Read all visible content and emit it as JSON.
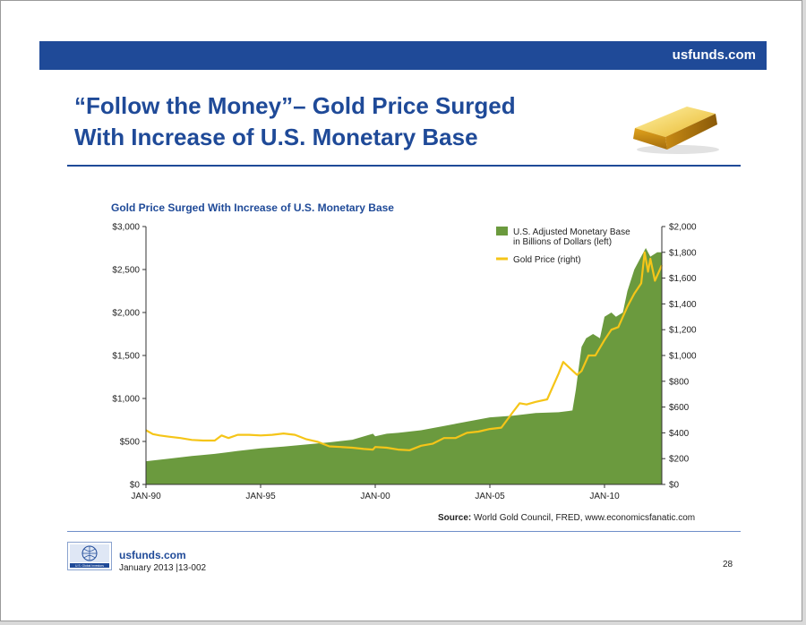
{
  "header": {
    "site": "usfunds.com"
  },
  "slide_title": "“Follow the Money”– Gold Price Surged\nWith Increase of U.S. Monetary Base",
  "footer": {
    "site": "usfunds.com",
    "date_code": "January 2013 |13-002",
    "page_number": "28",
    "logo_caption": "U.S. Global Investors"
  },
  "source_note": {
    "label": "Source:",
    "text": " World Gold Council, FRED, www.economicsfanatic.com"
  },
  "colors": {
    "brand_blue": "#1f4a98",
    "monetary_base": "#6b9a3e",
    "gold_price": "#f5c518"
  },
  "chart_data": {
    "type": "area",
    "title": "Gold Price Surged With Increase of U.S. Monetary Base",
    "x_range": [
      1990.0,
      2012.5
    ],
    "x_ticks": [
      {
        "value": 1990,
        "label": "JAN-90"
      },
      {
        "value": 1995,
        "label": "JAN-95"
      },
      {
        "value": 2000,
        "label": "JAN-00"
      },
      {
        "value": 2005,
        "label": "JAN-05"
      },
      {
        "value": 2010,
        "label": "JAN-10"
      }
    ],
    "y_left": {
      "range": [
        0,
        3000
      ],
      "ticks": [
        0,
        500,
        1000,
        1500,
        2000,
        2500,
        3000
      ],
      "labels": [
        "$0",
        "$500",
        "$1,000",
        "$1,500",
        "$2,000",
        "$2,500",
        "$3,000"
      ]
    },
    "y_right": {
      "range": [
        0,
        2000
      ],
      "ticks": [
        0,
        200,
        400,
        600,
        800,
        1000,
        1200,
        1400,
        1600,
        1800,
        2000
      ],
      "labels": [
        "$0",
        "$200",
        "$400",
        "$600",
        "$800",
        "$1,000",
        "$1,200",
        "$1,400",
        "$1,600",
        "$1,800",
        "$2,000"
      ]
    },
    "legend_position": "top-right",
    "grid": false,
    "series": [
      {
        "name": "U.S. Adjusted Monetary Base\nin Billions of Dollars (left)",
        "type": "area",
        "axis": "left",
        "color": "#6b9a3e",
        "x": [
          1990.0,
          1991.0,
          1992.0,
          1993.0,
          1994.0,
          1995.0,
          1996.0,
          1997.0,
          1998.0,
          1999.0,
          1999.9,
          2000.0,
          2000.5,
          2001.0,
          2002.0,
          2003.0,
          2004.0,
          2005.0,
          2006.0,
          2007.0,
          2008.0,
          2008.6,
          2008.75,
          2008.9,
          2009.0,
          2009.2,
          2009.5,
          2009.8,
          2010.0,
          2010.3,
          2010.5,
          2010.8,
          2011.0,
          2011.3,
          2011.5,
          2011.8,
          2012.0,
          2012.3,
          2012.5
        ],
        "values": [
          270,
          300,
          330,
          355,
          390,
          420,
          440,
          465,
          490,
          520,
          590,
          560,
          590,
          600,
          630,
          680,
          730,
          780,
          800,
          830,
          840,
          860,
          1100,
          1400,
          1600,
          1700,
          1750,
          1700,
          1950,
          2000,
          1950,
          2000,
          2250,
          2500,
          2600,
          2750,
          2650,
          2700,
          2700
        ]
      },
      {
        "name": "Gold Price (right)",
        "type": "line",
        "axis": "right",
        "color": "#f5c518",
        "x": [
          1990.0,
          1990.3,
          1990.6,
          1991.0,
          1991.5,
          1992.0,
          1992.5,
          1993.0,
          1993.3,
          1993.6,
          1994.0,
          1994.5,
          1995.0,
          1995.5,
          1996.0,
          1996.5,
          1997.0,
          1997.5,
          1998.0,
          1998.5,
          1999.0,
          1999.5,
          1999.9,
          2000.0,
          2000.5,
          2001.0,
          2001.5,
          2002.0,
          2002.5,
          2003.0,
          2003.5,
          2004.0,
          2004.5,
          2005.0,
          2005.5,
          2006.0,
          2006.3,
          2006.6,
          2007.0,
          2007.5,
          2008.0,
          2008.2,
          2008.5,
          2008.8,
          2009.0,
          2009.3,
          2009.6,
          2010.0,
          2010.3,
          2010.6,
          2011.0,
          2011.3,
          2011.6,
          2011.75,
          2011.9,
          2012.0,
          2012.2,
          2012.3,
          2012.5
        ],
        "values": [
          420,
          390,
          380,
          370,
          360,
          345,
          340,
          340,
          380,
          360,
          385,
          385,
          380,
          385,
          395,
          385,
          350,
          330,
          295,
          290,
          285,
          275,
          270,
          290,
          285,
          270,
          265,
          300,
          315,
          360,
          360,
          400,
          410,
          430,
          440,
          560,
          630,
          620,
          640,
          660,
          860,
          950,
          900,
          850,
          880,
          1000,
          1000,
          1120,
          1200,
          1220,
          1380,
          1480,
          1560,
          1800,
          1650,
          1750,
          1580,
          1620,
          1700
        ]
      }
    ]
  }
}
